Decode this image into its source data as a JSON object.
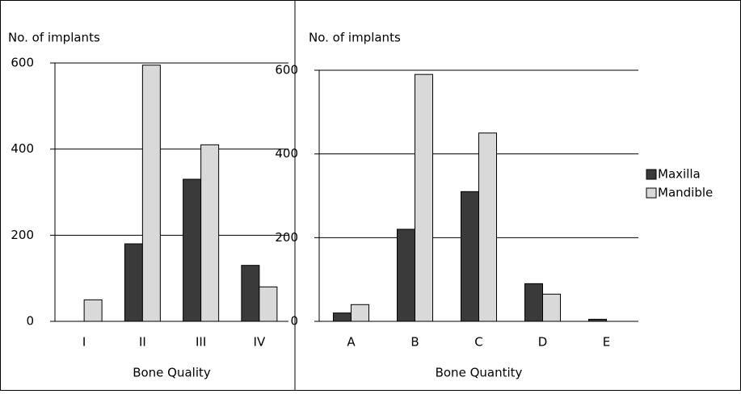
{
  "chart_data": [
    {
      "type": "bar",
      "y_label": "No. of implants",
      "x_label": "Bone Quality",
      "categories": [
        "I",
        "II",
        "III",
        "IV"
      ],
      "series": [
        {
          "color": "#3a3a3a",
          "values": [
            0,
            180,
            330,
            130
          ]
        },
        {
          "color": "#d9d9d9",
          "values": [
            50,
            595,
            410,
            80
          ]
        }
      ],
      "ylim": [
        0,
        600
      ],
      "yticks": [
        0,
        200,
        400,
        600
      ],
      "grid": true
    },
    {
      "type": "bar",
      "y_label": "No. of implants",
      "x_label": "Bone Quantity",
      "categories": [
        "A",
        "B",
        "C",
        "D",
        "E"
      ],
      "series": [
        {
          "name": "Maxilla",
          "color": "#3a3a3a",
          "values": [
            20,
            220,
            310,
            90,
            5
          ]
        },
        {
          "name": "Mandible",
          "color": "#d9d9d9",
          "values": [
            40,
            590,
            450,
            65,
            0
          ]
        }
      ],
      "ylim": [
        0,
        600
      ],
      "yticks": [
        0,
        200,
        400,
        600
      ],
      "grid": true,
      "legend": "right"
    }
  ]
}
